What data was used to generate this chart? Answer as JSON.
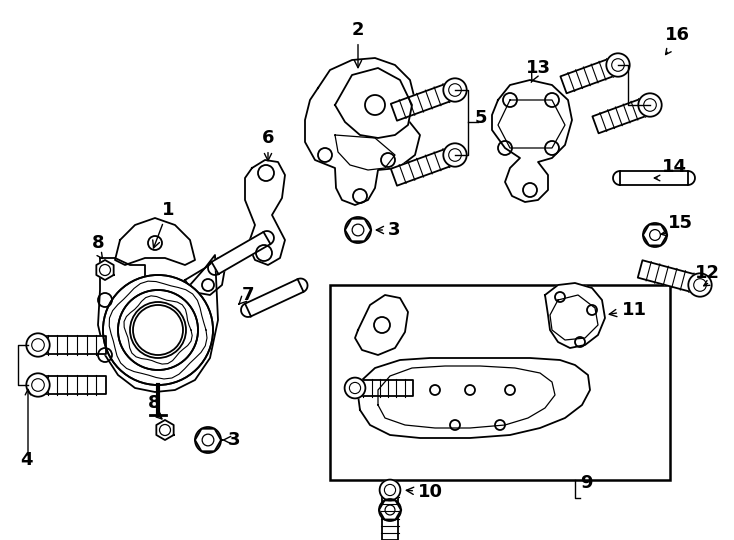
{
  "bg_color": "#ffffff",
  "line_color": "#000000",
  "fig_width": 7.34,
  "fig_height": 5.4,
  "dpi": 100,
  "xmax": 734,
  "ymax": 540
}
